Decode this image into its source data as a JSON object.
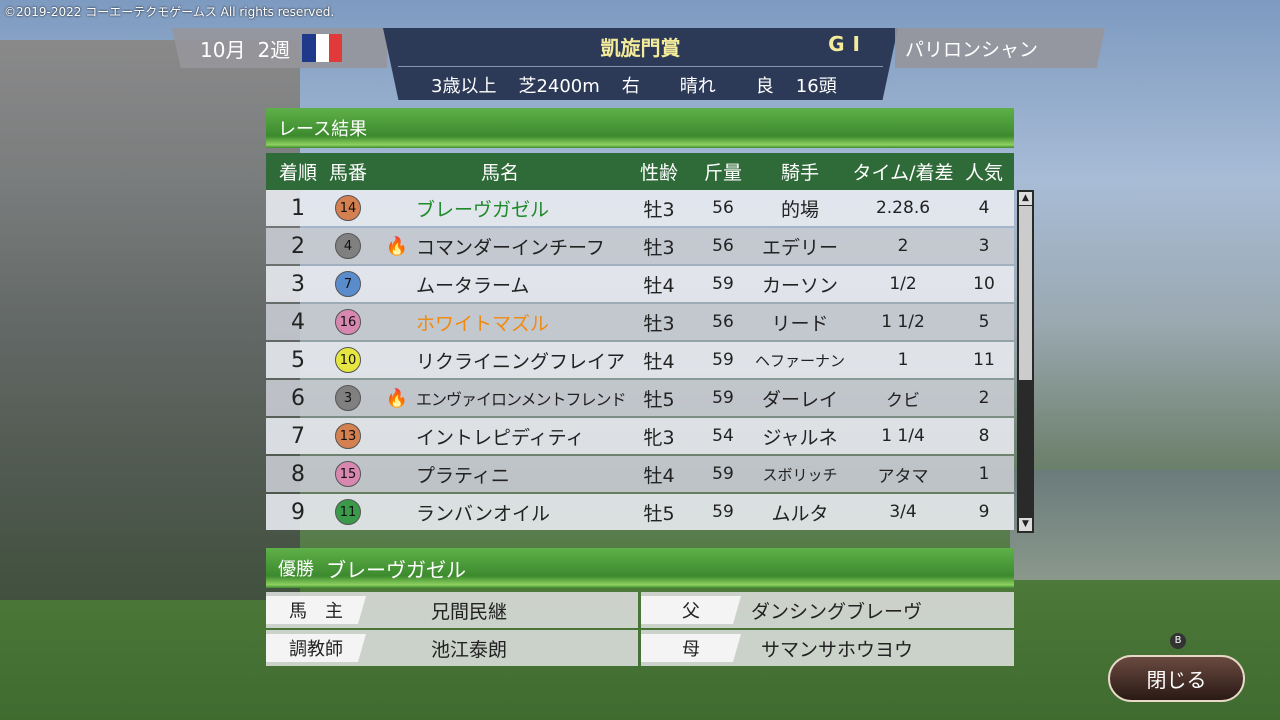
{
  "copyright": "©2019-2022 コーエーテクモゲームス All rights reserved.",
  "header": {
    "month": "10月",
    "week": "2週",
    "flag_colors": [
      "#1f3a8a",
      "#ffffff",
      "#e03a3a"
    ],
    "race_name": "凱旋門賞",
    "grade": "GⅠ",
    "course": "パリロンシャン",
    "conditions": [
      "3歳以上",
      "芝2400m",
      "右",
      "晴れ",
      "良",
      "16頭"
    ]
  },
  "results": {
    "title": "レース結果",
    "columns": [
      "着順",
      "馬番",
      "馬名",
      "性齢",
      "斤量",
      "騎手",
      "タイム/着差",
      "人気"
    ],
    "rows": [
      {
        "pos": "1",
        "num": "14",
        "badge": "#d48050",
        "flame": false,
        "name": "ブレーヴガゼル",
        "name_color": "#1f8a2a",
        "sex_age": "牡3",
        "weight": "56",
        "jockey": "的場",
        "time": "2.28.6",
        "pop": "4"
      },
      {
        "pos": "2",
        "num": "4",
        "badge": "#808080",
        "flame": true,
        "name": "コマンダーインチーフ",
        "name_color": "#222222",
        "sex_age": "牡3",
        "weight": "56",
        "jockey": "エデリー",
        "time": "2",
        "pop": "3"
      },
      {
        "pos": "3",
        "num": "7",
        "badge": "#5a8ccc",
        "flame": false,
        "name": "ムータラーム",
        "name_color": "#222222",
        "sex_age": "牡4",
        "weight": "59",
        "jockey": "カーソン",
        "time": "1/2",
        "pop": "10"
      },
      {
        "pos": "4",
        "num": "16",
        "badge": "#d888b0",
        "flame": false,
        "name": "ホワイトマズル",
        "name_color": "#f08a10",
        "sex_age": "牡3",
        "weight": "56",
        "jockey": "リード",
        "time": "1 1/2",
        "pop": "5"
      },
      {
        "pos": "5",
        "num": "10",
        "badge": "#e6e640",
        "flame": false,
        "name": "リクライニングフレイア",
        "name_color": "#222222",
        "sex_age": "牡4",
        "weight": "59",
        "jockey": "ヘファーナン",
        "time": "1",
        "pop": "11"
      },
      {
        "pos": "6",
        "num": "3",
        "badge": "#808080",
        "flame": true,
        "name": "エンヴァイロンメントフレンド",
        "name_color": "#222222",
        "sex_age": "牡5",
        "weight": "59",
        "jockey": "ダーレイ",
        "time": "クビ",
        "pop": "2"
      },
      {
        "pos": "7",
        "num": "13",
        "badge": "#d48050",
        "flame": false,
        "name": "イントレピディティ",
        "name_color": "#222222",
        "sex_age": "牝3",
        "weight": "54",
        "jockey": "ジャルネ",
        "time": "1 1/4",
        "pop": "8"
      },
      {
        "pos": "8",
        "num": "15",
        "badge": "#d888b0",
        "flame": false,
        "name": "プラティニ",
        "name_color": "#222222",
        "sex_age": "牡4",
        "weight": "59",
        "jockey": "スボリッチ",
        "time": "アタマ",
        "pop": "1"
      },
      {
        "pos": "9",
        "num": "11",
        "badge": "#3a9a4a",
        "flame": false,
        "name": "ランバンオイル",
        "name_color": "#222222",
        "sex_age": "牡5",
        "weight": "59",
        "jockey": "ムルタ",
        "time": "3/4",
        "pop": "9"
      }
    ]
  },
  "winner": {
    "label": "優勝",
    "name": "ブレーヴガゼル",
    "owner_label": "馬　主",
    "owner": "兄間民継",
    "trainer_label": "調教師",
    "trainer": "池江泰朗",
    "sire_label": "父",
    "sire": "ダンシングブレーヴ",
    "dam_label": "母",
    "dam": "サマンサホウヨウ"
  },
  "close": {
    "key": "B",
    "label": "閉じる"
  }
}
